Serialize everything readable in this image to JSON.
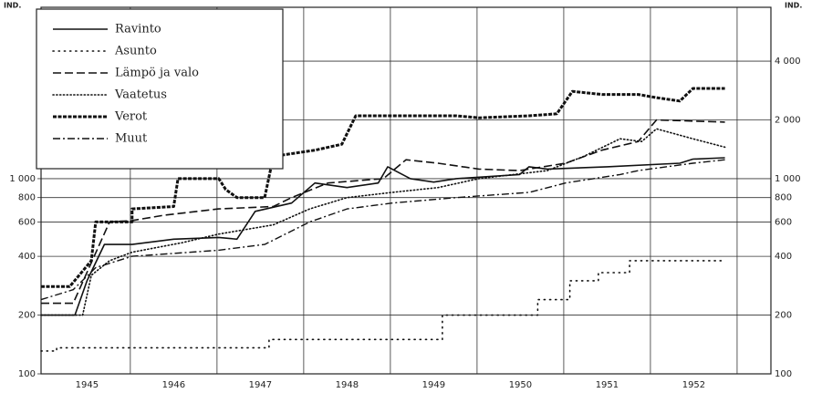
{
  "chart_data": {
    "type": "line",
    "y_label": "IND.",
    "y2_label": "IND.",
    "log_scale": true,
    "grid": true,
    "legend": "top-left",
    "xlim": [
      1944.97,
      1953.39
    ],
    "xticks": [
      {
        "value": 1945.5,
        "label": "1945"
      },
      {
        "value": 1946.5,
        "label": "1946"
      },
      {
        "value": 1947.5,
        "label": "1947"
      },
      {
        "value": 1948.5,
        "label": "1948"
      },
      {
        "value": 1949.5,
        "label": "1949"
      },
      {
        "value": 1950.5,
        "label": "1950"
      },
      {
        "value": 1951.5,
        "label": "1951"
      },
      {
        "value": 1952.5,
        "label": "1952"
      }
    ],
    "xgrid": [
      1946,
      1947,
      1948,
      1949,
      1950,
      1951,
      1952,
      1953
    ],
    "ylim": [
      100,
      7550
    ],
    "yticks": [
      100,
      200,
      400,
      600,
      800,
      {
        "value": 1000,
        "label": "1 000"
      }
    ],
    "y2lim": [
      100,
      7550
    ],
    "y2ticks": [
      100,
      200,
      400,
      600,
      800,
      {
        "value": 1000,
        "label": "1 000"
      },
      {
        "value": 2000,
        "label": "2 000"
      },
      {
        "value": 4000,
        "label": "4 000"
      }
    ],
    "series": [
      {
        "name": "Ravinto",
        "color": "#111111",
        "style": "solid",
        "x": [
          1944.97,
          1945.36,
          1945.5,
          1945.7,
          1946.02,
          1946.5,
          1947.02,
          1947.23,
          1947.44,
          1947.86,
          1948.13,
          1948.5,
          1948.86,
          1948.97,
          1949.23,
          1949.5,
          1949.76,
          1950.49,
          1950.6,
          1950.81,
          1951.5,
          1952.34,
          1952.49,
          1952.86
        ],
        "values": [
          200,
          200,
          300,
          460,
          460,
          490,
          500,
          490,
          680,
          750,
          950,
          900,
          950,
          1150,
          1000,
          960,
          1000,
          1050,
          1150,
          1120,
          1150,
          1200,
          1260,
          1280
        ]
      },
      {
        "name": "Asunto",
        "color": "#111111",
        "style": "dotted",
        "x": [
          1944.97,
          1945.15,
          1945.15,
          1947.6,
          1947.6,
          1949.6,
          1949.6,
          1950.7,
          1950.7,
          1951.07,
          1951.07,
          1951.4,
          1951.4,
          1951.76,
          1951.76,
          1952.86
        ],
        "values": [
          131,
          131,
          136,
          136,
          150,
          150,
          200,
          200,
          240,
          240,
          300,
          300,
          330,
          330,
          380,
          380
        ]
      },
      {
        "name": "Lämpö ja valo",
        "color": "#111111",
        "style": "dashed",
        "x": [
          1944.97,
          1945.34,
          1945.76,
          1946.02,
          1946.39,
          1947.02,
          1947.65,
          1947.86,
          1948.28,
          1948.92,
          1949.18,
          1949.55,
          1950.02,
          1950.49,
          1951.02,
          1951.44,
          1951.86,
          1952.07,
          1952.86
        ],
        "values": [
          230,
          230,
          600,
          610,
          650,
          700,
          720,
          800,
          950,
          1000,
          1250,
          1200,
          1120,
          1100,
          1200,
          1400,
          1550,
          2000,
          1950
        ]
      },
      {
        "name": "Vaatetus",
        "color": "#111111",
        "style": "dotted-dense",
        "x": [
          1944.97,
          1945.45,
          1945.55,
          1945.76,
          1946.02,
          1946.6,
          1947.02,
          1947.65,
          1948.07,
          1948.5,
          1949.02,
          1949.55,
          1950.02,
          1950.81,
          1951.23,
          1951.65,
          1951.9,
          1952.07,
          1952.49,
          1952.86
        ],
        "values": [
          200,
          200,
          320,
          380,
          420,
          470,
          520,
          580,
          700,
          800,
          850,
          900,
          1000,
          1100,
          1300,
          1600,
          1550,
          1800,
          1600,
          1450
        ]
      },
      {
        "name": "Verot",
        "color": "#111111",
        "style": "ticked",
        "x": [
          1944.97,
          1945.3,
          1945.55,
          1945.6,
          1946.02,
          1946.02,
          1946.5,
          1946.55,
          1947.02,
          1947.1,
          1947.23,
          1947.55,
          1947.65,
          1948.13,
          1948.44,
          1948.6,
          1949.76,
          1950.02,
          1950.6,
          1950.92,
          1951.1,
          1951.44,
          1951.86,
          1952.07,
          1952.34,
          1952.49,
          1952.86
        ],
        "values": [
          280,
          280,
          380,
          600,
          600,
          700,
          720,
          1000,
          1000,
          880,
          800,
          800,
          1300,
          1400,
          1500,
          2100,
          2100,
          2050,
          2100,
          2150,
          2800,
          2700,
          2700,
          2600,
          2500,
          2900,
          2900
        ]
      },
      {
        "name": "Muut",
        "color": "#111111",
        "style": "dashdot",
        "x": [
          1944.97,
          1945.34,
          1945.6,
          1946.02,
          1947.02,
          1947.55,
          1948.07,
          1948.5,
          1949.02,
          1949.76,
          1950.6,
          1951.02,
          1951.65,
          1951.86,
          1952.49,
          1952.86
        ],
        "values": [
          240,
          270,
          350,
          400,
          430,
          460,
          600,
          700,
          750,
          800,
          850,
          950,
          1050,
          1100,
          1200,
          1250
        ]
      }
    ]
  }
}
